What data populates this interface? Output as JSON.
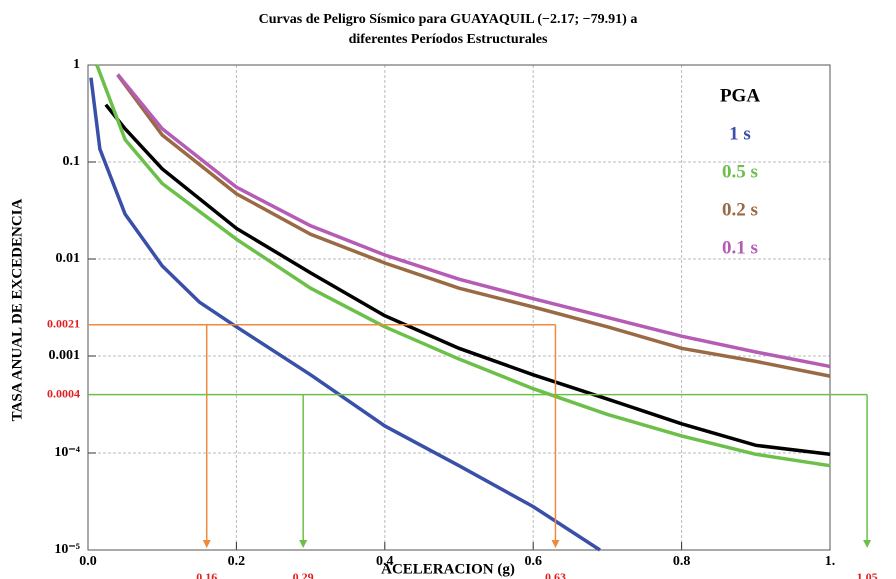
{
  "chart_data": {
    "type": "line",
    "title": [
      "Curvas de Peligro Sísmico para GUAYAQUIL (−2.17; −79.91) a",
      "diferentes Períodos Estructurales"
    ],
    "x_label": "ACELERACION (g)",
    "y_label": "TASA ANUAL DE EXCEDENCIA",
    "log_y": true,
    "grid": true,
    "legend": "upper right",
    "xlim": [
      0,
      1
    ],
    "ylim": [
      1e-05,
      1
    ],
    "xticks": [
      {
        "value": 0,
        "label": "0.0"
      },
      0.2,
      0.4,
      0.6,
      0.8,
      {
        "value": 1,
        "label": "1."
      }
    ],
    "yticks": [
      {
        "value": 1e-05,
        "label": "10⁻⁵"
      },
      {
        "value": 0.0001,
        "label": "10⁻⁴"
      },
      0.001,
      0.01,
      0.1,
      1
    ],
    "series": [
      {
        "name": "PGA",
        "color": "#000000",
        "x": [
          0.024,
          0.05,
          0.1,
          0.2,
          0.3,
          0.4,
          0.5,
          0.6,
          0.7,
          0.8,
          0.9,
          1.0
        ],
        "values": [
          0.39,
          0.22,
          0.085,
          0.0207,
          0.0072,
          0.0026,
          0.0012,
          0.00064,
          0.00036,
          0.0002,
          0.00012,
          9.7e-05
        ]
      },
      {
        "name": "1 s",
        "color": "#3a4fa8",
        "x": [
          0.004,
          0.016,
          0.05,
          0.1,
          0.15,
          0.2,
          0.3,
          0.4,
          0.5,
          0.6,
          0.69
        ],
        "values": [
          0.74,
          0.136,
          0.029,
          0.0085,
          0.0036,
          0.002,
          0.00064,
          0.00019,
          7.4e-05,
          2.8e-05,
          1e-05
        ]
      },
      {
        "name": "0.5 s",
        "color": "#6cc04a",
        "x": [
          0.012,
          0.05,
          0.1,
          0.2,
          0.3,
          0.4,
          0.5,
          0.6,
          0.7,
          0.8,
          0.9,
          1.0
        ],
        "values": [
          1.0,
          0.17,
          0.06,
          0.016,
          0.005,
          0.002,
          0.00093,
          0.00046,
          0.00025,
          0.00015,
          9.7e-05,
          7.4e-05
        ]
      },
      {
        "name": "0.2 s",
        "color": "#9a6a45",
        "x": [
          0.04,
          0.1,
          0.2,
          0.3,
          0.4,
          0.5,
          0.6,
          0.7,
          0.8,
          0.9,
          1.0
        ],
        "values": [
          0.79,
          0.19,
          0.047,
          0.018,
          0.0091,
          0.005,
          0.0032,
          0.002,
          0.0012,
          0.00088,
          0.00062
        ]
      },
      {
        "name": "0.1 s",
        "color": "#b55cb5",
        "x": [
          0.04,
          0.1,
          0.2,
          0.3,
          0.4,
          0.5,
          0.6,
          0.7,
          0.8,
          0.9,
          1.0
        ],
        "values": [
          0.8,
          0.22,
          0.055,
          0.022,
          0.011,
          0.0062,
          0.0039,
          0.0025,
          0.0016,
          0.0011,
          0.00078
        ]
      }
    ],
    "reference_lines": [
      {
        "y": 0.0021,
        "color": "#f08a3a",
        "x": [
          0.16,
          0.63
        ]
      },
      {
        "y": 0.0004,
        "color": "#6cc04a",
        "x": [
          0.29,
          1.05
        ]
      }
    ]
  }
}
